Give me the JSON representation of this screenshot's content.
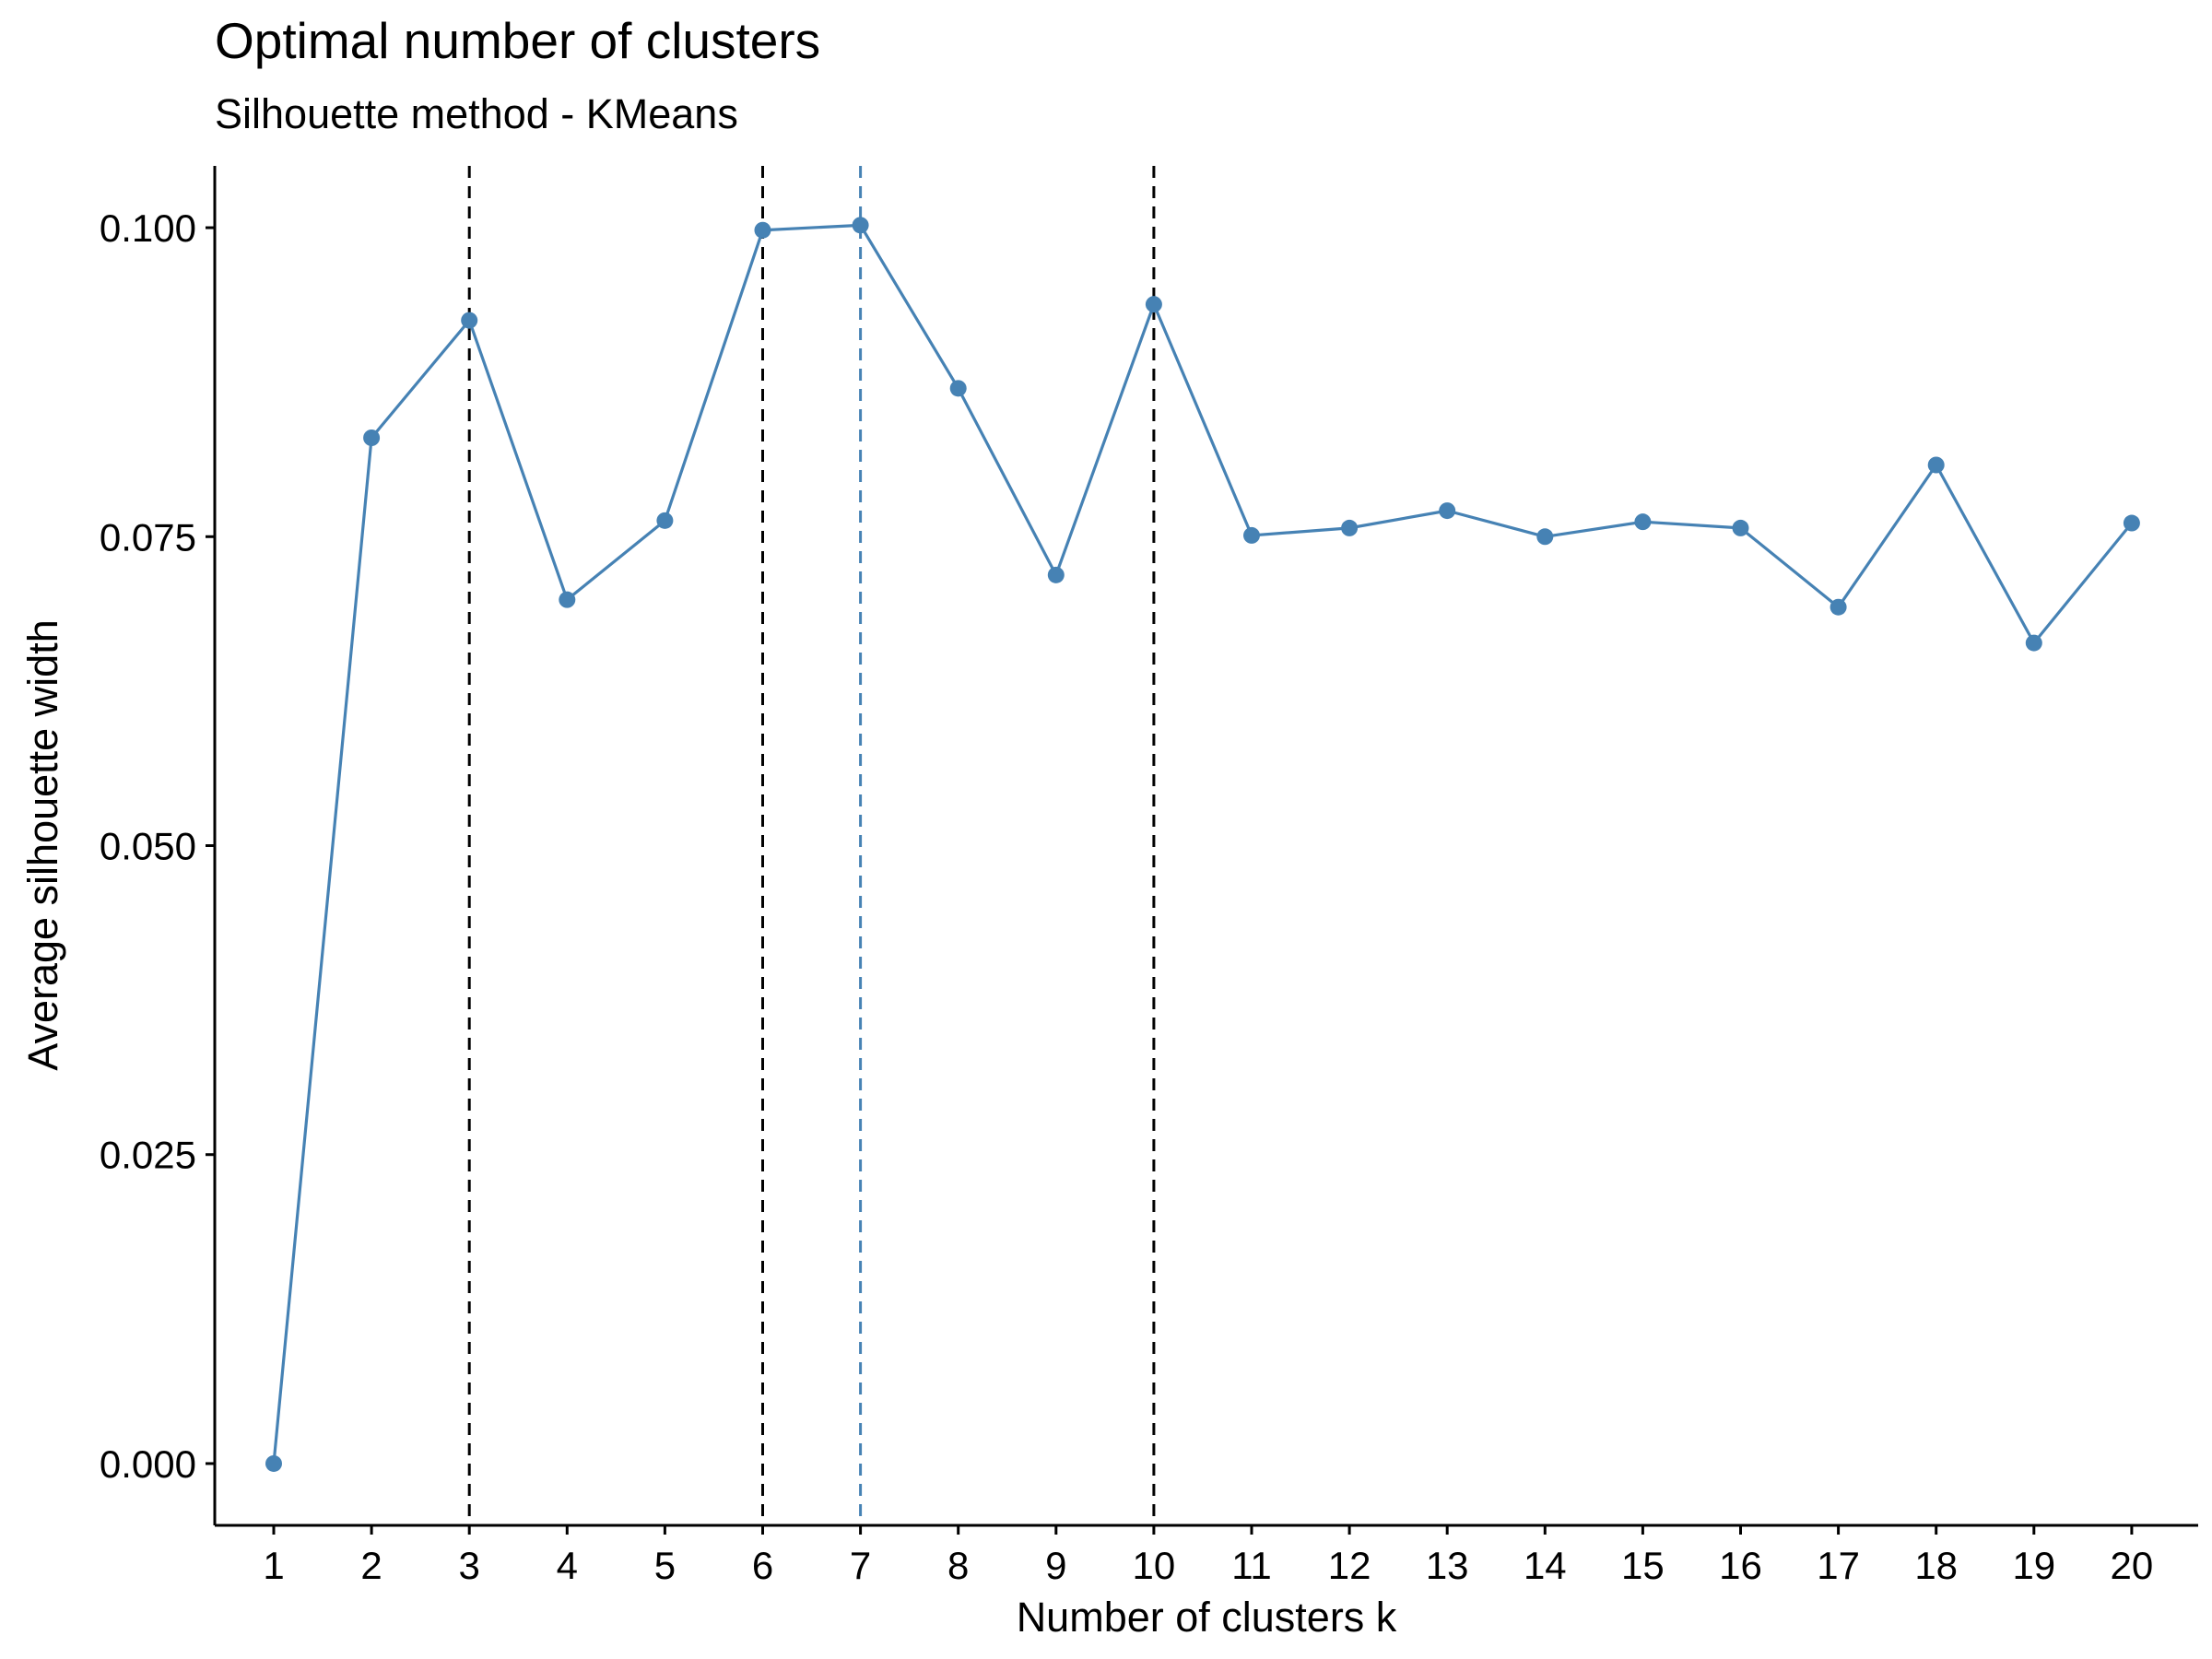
{
  "chart_data": {
    "type": "line",
    "title": "Optimal number of clusters",
    "subtitle": "Silhouette method - KMeans",
    "xlabel": "Number of clusters k",
    "ylabel": "Average silhouette width",
    "x": [
      1,
      2,
      3,
      4,
      5,
      6,
      7,
      8,
      9,
      10,
      11,
      12,
      13,
      14,
      15,
      16,
      17,
      18,
      19,
      20
    ],
    "values": [
      0.0,
      0.083,
      0.0925,
      0.0699,
      0.0763,
      0.0998,
      0.1002,
      0.087,
      0.0719,
      0.0938,
      0.0751,
      0.0757,
      0.0771,
      0.075,
      0.0762,
      0.0757,
      0.0693,
      0.0808,
      0.0664,
      0.0761
    ],
    "ylim": [
      -0.005,
      0.105
    ],
    "yticks": [
      "0.000",
      "0.025",
      "0.050",
      "0.075",
      "0.100"
    ],
    "ytick_values": [
      0,
      0.025,
      0.05,
      0.075,
      0.1
    ],
    "xticks": [
      "1",
      "2",
      "3",
      "4",
      "5",
      "6",
      "7",
      "8",
      "9",
      "10",
      "11",
      "12",
      "13",
      "14",
      "15",
      "16",
      "17",
      "18",
      "19",
      "20"
    ],
    "vlines": [
      {
        "x": 3,
        "color": "#000000"
      },
      {
        "x": 6,
        "color": "#000000"
      },
      {
        "x": 7,
        "color": "#4682b4"
      },
      {
        "x": 10,
        "color": "#000000"
      }
    ],
    "line_color": "#4682b4",
    "grid": false,
    "legend": "none"
  }
}
